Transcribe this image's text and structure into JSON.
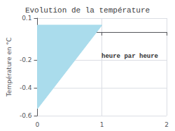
{
  "chart_data": {
    "type": "area",
    "title": "Evolution de la température",
    "ylabel": "Température en °C",
    "annotation": "heure par heure",
    "x": [
      0,
      0,
      1
    ],
    "values": [
      -0.55,
      0.05,
      0.05
    ],
    "color": "#aadcec",
    "xlim": [
      0,
      2
    ],
    "ylim": [
      -0.6,
      0.1
    ],
    "xticks": [
      0,
      1,
      2
    ],
    "yticks": [
      0.1,
      -0.2,
      -0.4,
      -0.6
    ],
    "grid": true
  }
}
